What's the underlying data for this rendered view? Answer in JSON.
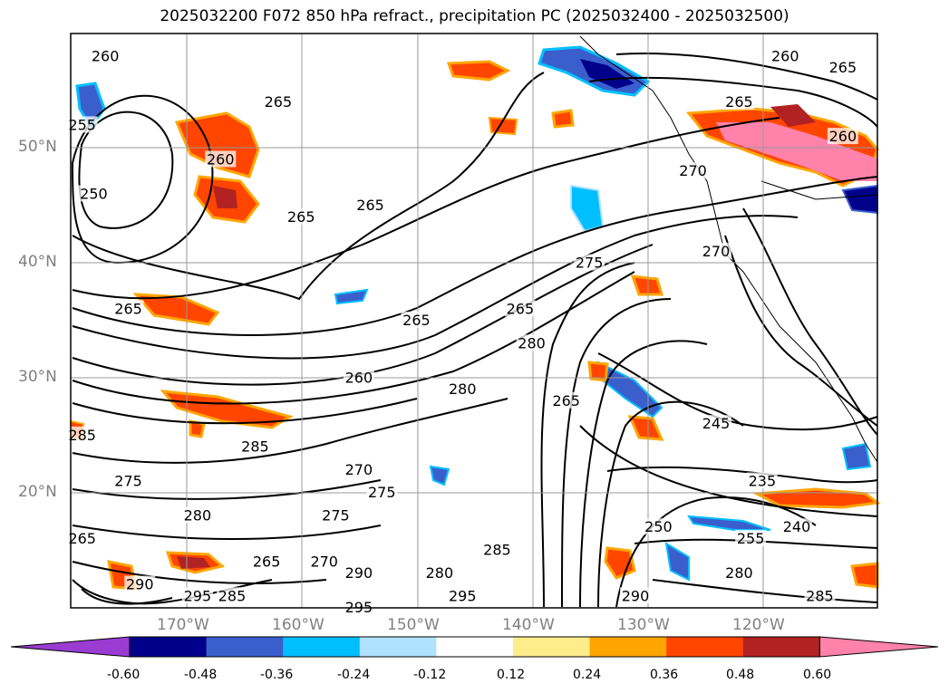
{
  "title": "2025032200 F072 850 hPa refract., precipitation PC (2025032400 - 2025032500)",
  "lat_labels": [
    "50°N",
    "40°N",
    "30°N",
    "20°N"
  ],
  "lon_labels": [
    "170°W",
    "160°W",
    "150°W",
    "140°W",
    "130°W",
    "120°W"
  ],
  "colorbar": {
    "ticks": [
      "-0.60",
      "-0.48",
      "-0.36",
      "-0.24",
      "-0.12",
      "0.12",
      "0.24",
      "0.36",
      "0.48",
      "0.60"
    ],
    "colors": [
      "#9a3cd2",
      "#00008b",
      "#3a5fcd",
      "#00bfff",
      "#b0e2ff",
      "#ffffff",
      "#ffec8b",
      "#ffa500",
      "#ff4500",
      "#b22222",
      "#ff82ab"
    ]
  },
  "contour_labels": [
    {
      "text": "260",
      "lat": 58,
      "lon": -177
    },
    {
      "text": "255",
      "lat": 52,
      "lon": -179
    },
    {
      "text": "250",
      "lat": 46,
      "lon": -178
    },
    {
      "text": "265",
      "lat": 54,
      "lon": -162
    },
    {
      "text": "265",
      "lat": 44,
      "lon": -160
    },
    {
      "text": "265",
      "lat": 45,
      "lon": -154
    },
    {
      "text": "265",
      "lat": 36,
      "lon": -175
    },
    {
      "text": "260",
      "lat": 49,
      "lon": -167
    },
    {
      "text": "265",
      "lat": 36,
      "lon": -141
    },
    {
      "text": "265",
      "lat": 35,
      "lon": -150
    },
    {
      "text": "260",
      "lat": 30,
      "lon": -155
    },
    {
      "text": "275",
      "lat": 40,
      "lon": -135
    },
    {
      "text": "270",
      "lat": 41,
      "lon": -124
    },
    {
      "text": "270",
      "lat": 48,
      "lon": -126
    },
    {
      "text": "265",
      "lat": 54,
      "lon": -122
    },
    {
      "text": "265",
      "lat": 57,
      "lon": -113
    },
    {
      "text": "260",
      "lat": 58,
      "lon": -118
    },
    {
      "text": "260",
      "lat": 51,
      "lon": -113
    },
    {
      "text": "280",
      "lat": 33,
      "lon": -140
    },
    {
      "text": "280",
      "lat": 29,
      "lon": -146
    },
    {
      "text": "265",
      "lat": 28,
      "lon": -137
    },
    {
      "text": "245",
      "lat": 26,
      "lon": -124
    },
    {
      "text": "235",
      "lat": 21,
      "lon": -120
    },
    {
      "text": "240",
      "lat": 17,
      "lon": -117
    },
    {
      "text": "255",
      "lat": 16,
      "lon": -121
    },
    {
      "text": "250",
      "lat": 17,
      "lon": -129
    },
    {
      "text": "280",
      "lat": 13,
      "lon": -122
    },
    {
      "text": "290",
      "lat": 11,
      "lon": -131
    },
    {
      "text": "285",
      "lat": 15,
      "lon": -143
    },
    {
      "text": "280",
      "lat": 13,
      "lon": -148
    },
    {
      "text": "285",
      "lat": 25,
      "lon": -179
    },
    {
      "text": "285",
      "lat": 24,
      "lon": -164
    },
    {
      "text": "275",
      "lat": 21,
      "lon": -175
    },
    {
      "text": "280",
      "lat": 18,
      "lon": -169
    },
    {
      "text": "265",
      "lat": 16,
      "lon": -179
    },
    {
      "text": "265",
      "lat": 14,
      "lon": -163
    },
    {
      "text": "270",
      "lat": 14,
      "lon": -158
    },
    {
      "text": "290",
      "lat": 13,
      "lon": -155
    },
    {
      "text": "290",
      "lat": 12,
      "lon": -174
    },
    {
      "text": "295",
      "lat": 11,
      "lon": -169
    },
    {
      "text": "285",
      "lat": 11,
      "lon": -166
    },
    {
      "text": "295",
      "lat": 10,
      "lon": -155
    },
    {
      "text": "295",
      "lat": 11,
      "lon": -146
    },
    {
      "text": "285",
      "lat": 11,
      "lon": -115
    },
    {
      "text": "275",
      "lat": 20,
      "lon": -153
    },
    {
      "text": "275",
      "lat": 18,
      "lon": -157
    },
    {
      "text": "270",
      "lat": 22,
      "lon": -155
    }
  ]
}
